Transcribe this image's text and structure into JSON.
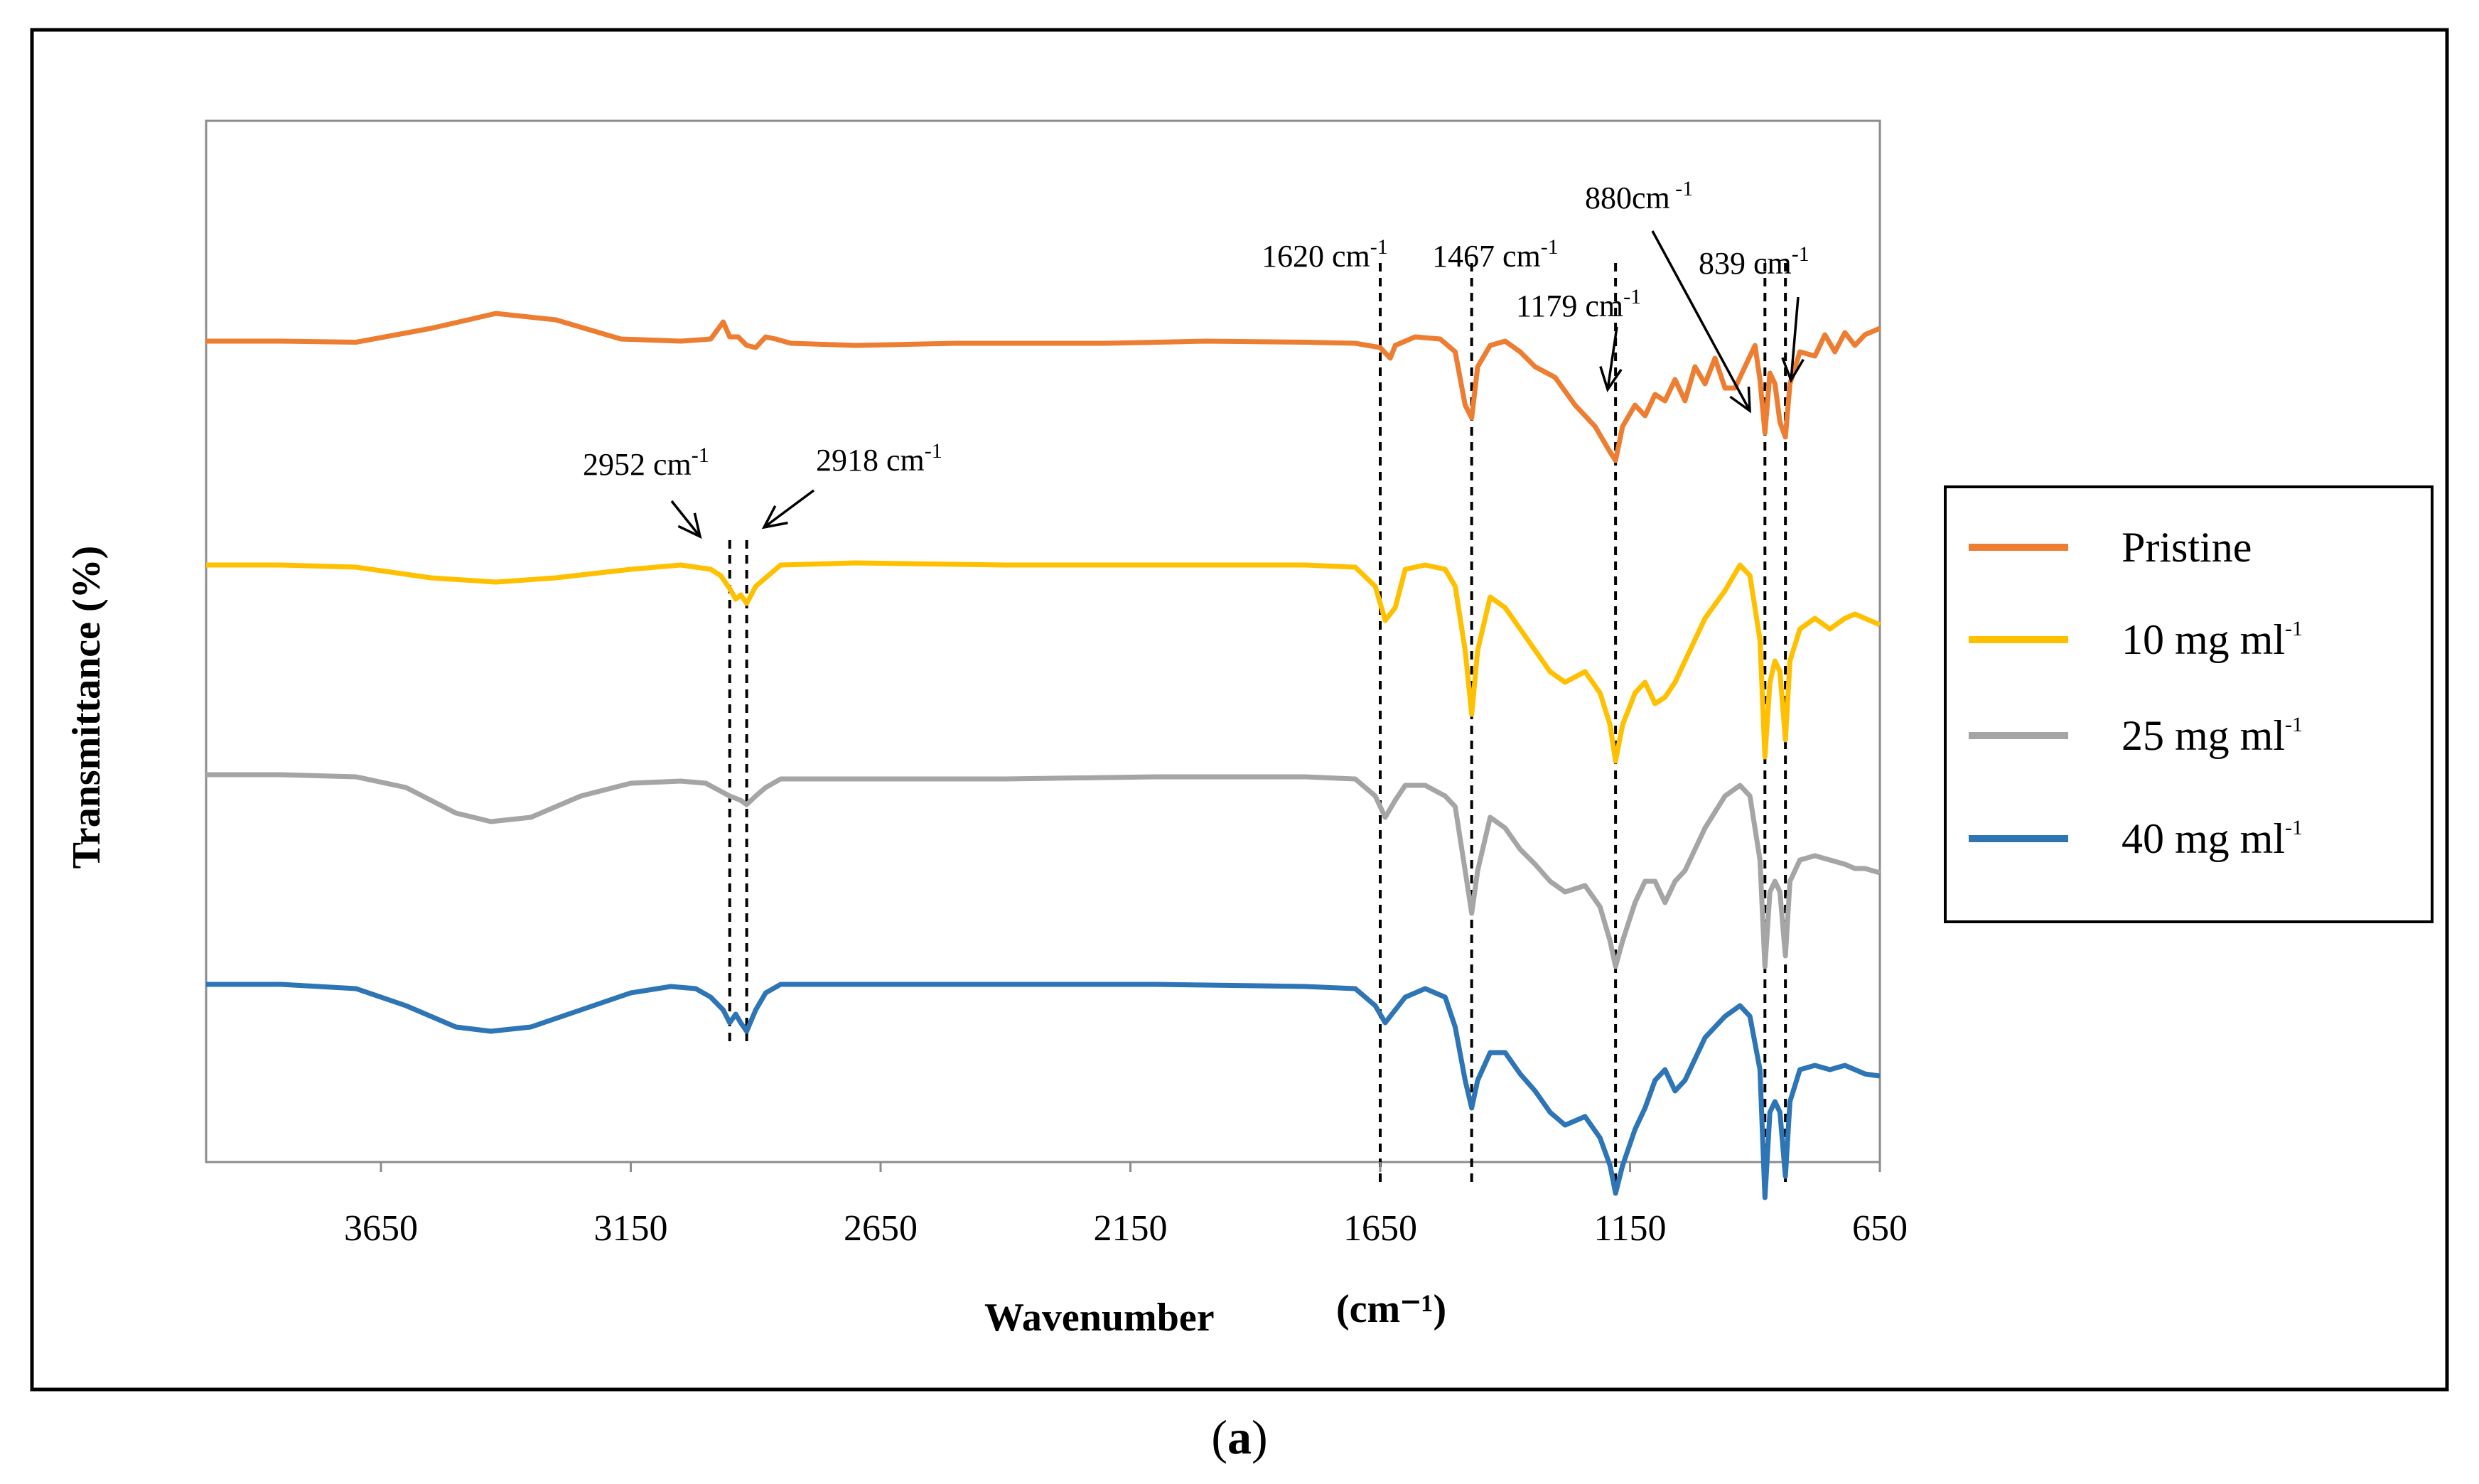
{
  "chart_data": {
    "type": "line",
    "title": "",
    "xlabel": "Wavenumber",
    "xlabel_unit": "(cm⁻¹)",
    "ylabel": "Transmittance (%)",
    "xlim": [
      4000,
      650
    ],
    "x_reversed": true,
    "x_ticks": [
      "3650",
      "3150",
      "2650",
      "2150",
      "1650",
      "1150",
      "650"
    ],
    "x_tick_values": [
      3650,
      3150,
      2650,
      2150,
      1650,
      1150,
      650
    ],
    "y_ticks": [],
    "grid": false,
    "legend_position": "right",
    "series": [
      {
        "name": "Pristine",
        "color": "#ED7D31",
        "baseline": 0.0,
        "points": [
          [
            4000,
            0
          ],
          [
            3850,
            0
          ],
          [
            3700,
            0.005
          ],
          [
            3550,
            -0.06
          ],
          [
            3420,
            -0.13
          ],
          [
            3300,
            -0.1
          ],
          [
            3170,
            -0.01
          ],
          [
            3050,
            0
          ],
          [
            2990,
            -0.01
          ],
          [
            2965,
            -0.09
          ],
          [
            2952,
            -0.02
          ],
          [
            2935,
            -0.02
          ],
          [
            2918,
            0.02
          ],
          [
            2900,
            0.03
          ],
          [
            2880,
            -0.02
          ],
          [
            2860,
            -0.01
          ],
          [
            2830,
            0.01
          ],
          [
            2700,
            0.02
          ],
          [
            2500,
            0.01
          ],
          [
            2200,
            0.01
          ],
          [
            2000,
            0
          ],
          [
            1800,
            0.005
          ],
          [
            1700,
            0.01
          ],
          [
            1650,
            0.03
          ],
          [
            1630,
            0.08
          ],
          [
            1620,
            0.02
          ],
          [
            1580,
            -0.02
          ],
          [
            1530,
            -0.01
          ],
          [
            1500,
            0.05
          ],
          [
            1480,
            0.3
          ],
          [
            1467,
            0.36
          ],
          [
            1455,
            0.12
          ],
          [
            1430,
            0.02
          ],
          [
            1400,
            0.0
          ],
          [
            1370,
            0.05
          ],
          [
            1340,
            0.12
          ],
          [
            1300,
            0.17
          ],
          [
            1260,
            0.3
          ],
          [
            1220,
            0.4
          ],
          [
            1190,
            0.52
          ],
          [
            1179,
            0.56
          ],
          [
            1165,
            0.4
          ],
          [
            1140,
            0.3
          ],
          [
            1120,
            0.35
          ],
          [
            1100,
            0.25
          ],
          [
            1080,
            0.28
          ],
          [
            1060,
            0.18
          ],
          [
            1040,
            0.28
          ],
          [
            1020,
            0.12
          ],
          [
            1000,
            0.2
          ],
          [
            980,
            0.08
          ],
          [
            960,
            0.22
          ],
          [
            940,
            0.22
          ],
          [
            920,
            0.12
          ],
          [
            900,
            0.02
          ],
          [
            890,
            0.18
          ],
          [
            880,
            0.43
          ],
          [
            870,
            0.15
          ],
          [
            860,
            0.2
          ],
          [
            850,
            0.38
          ],
          [
            839,
            0.45
          ],
          [
            830,
            0.2
          ],
          [
            810,
            0.05
          ],
          [
            780,
            0.07
          ],
          [
            760,
            -0.03
          ],
          [
            740,
            0.05
          ],
          [
            720,
            -0.04
          ],
          [
            700,
            0.02
          ],
          [
            680,
            -0.03
          ],
          [
            650,
            -0.06
          ]
        ]
      },
      {
        "name": "10 mg ml⁻¹",
        "color": "#FFC000",
        "baseline": 1.0,
        "points": [
          [
            4000,
            1
          ],
          [
            3850,
            1
          ],
          [
            3700,
            1.01
          ],
          [
            3550,
            1.06
          ],
          [
            3420,
            1.08
          ],
          [
            3300,
            1.06
          ],
          [
            3150,
            1.02
          ],
          [
            3050,
            1.0
          ],
          [
            2990,
            1.02
          ],
          [
            2970,
            1.05
          ],
          [
            2952,
            1.11
          ],
          [
            2940,
            1.16
          ],
          [
            2930,
            1.14
          ],
          [
            2918,
            1.18
          ],
          [
            2900,
            1.1
          ],
          [
            2880,
            1.06
          ],
          [
            2850,
            1.0
          ],
          [
            2700,
            0.99
          ],
          [
            2400,
            1.0
          ],
          [
            2100,
            1.0
          ],
          [
            1800,
            1.0
          ],
          [
            1700,
            1.01
          ],
          [
            1660,
            1.1
          ],
          [
            1640,
            1.26
          ],
          [
            1620,
            1.2
          ],
          [
            1600,
            1.02
          ],
          [
            1560,
            1.0
          ],
          [
            1520,
            1.02
          ],
          [
            1500,
            1.1
          ],
          [
            1480,
            1.4
          ],
          [
            1467,
            1.7
          ],
          [
            1455,
            1.4
          ],
          [
            1430,
            1.15
          ],
          [
            1400,
            1.2
          ],
          [
            1370,
            1.3
          ],
          [
            1340,
            1.4
          ],
          [
            1310,
            1.5
          ],
          [
            1280,
            1.55
          ],
          [
            1240,
            1.5
          ],
          [
            1210,
            1.6
          ],
          [
            1190,
            1.75
          ],
          [
            1179,
            1.92
          ],
          [
            1165,
            1.75
          ],
          [
            1140,
            1.6
          ],
          [
            1120,
            1.55
          ],
          [
            1100,
            1.65
          ],
          [
            1080,
            1.62
          ],
          [
            1060,
            1.55
          ],
          [
            1040,
            1.45
          ],
          [
            1000,
            1.25
          ],
          [
            960,
            1.12
          ],
          [
            930,
            1.0
          ],
          [
            910,
            1.05
          ],
          [
            890,
            1.35
          ],
          [
            880,
            1.9
          ],
          [
            870,
            1.55
          ],
          [
            860,
            1.45
          ],
          [
            850,
            1.5
          ],
          [
            839,
            1.82
          ],
          [
            830,
            1.45
          ],
          [
            810,
            1.3
          ],
          [
            780,
            1.25
          ],
          [
            750,
            1.3
          ],
          [
            720,
            1.25
          ],
          [
            700,
            1.23
          ],
          [
            680,
            1.25
          ],
          [
            650,
            1.28
          ]
        ]
      },
      {
        "name": "25 mg ml⁻¹",
        "color": "#A5A5A5",
        "baseline": 2.0,
        "points": [
          [
            4000,
            2
          ],
          [
            3850,
            2
          ],
          [
            3700,
            2.01
          ],
          [
            3600,
            2.06
          ],
          [
            3500,
            2.18
          ],
          [
            3430,
            2.22
          ],
          [
            3350,
            2.2
          ],
          [
            3250,
            2.1
          ],
          [
            3150,
            2.04
          ],
          [
            3050,
            2.03
          ],
          [
            3000,
            2.04
          ],
          [
            2952,
            2.1
          ],
          [
            2930,
            2.12
          ],
          [
            2918,
            2.14
          ],
          [
            2900,
            2.1
          ],
          [
            2880,
            2.06
          ],
          [
            2850,
            2.02
          ],
          [
            2700,
            2.02
          ],
          [
            2400,
            2.02
          ],
          [
            2100,
            2.01
          ],
          [
            1800,
            2.01
          ],
          [
            1700,
            2.02
          ],
          [
            1660,
            2.1
          ],
          [
            1640,
            2.2
          ],
          [
            1620,
            2.12
          ],
          [
            1600,
            2.05
          ],
          [
            1560,
            2.05
          ],
          [
            1520,
            2.1
          ],
          [
            1500,
            2.15
          ],
          [
            1480,
            2.45
          ],
          [
            1467,
            2.65
          ],
          [
            1455,
            2.45
          ],
          [
            1430,
            2.2
          ],
          [
            1400,
            2.25
          ],
          [
            1370,
            2.35
          ],
          [
            1340,
            2.42
          ],
          [
            1310,
            2.5
          ],
          [
            1280,
            2.55
          ],
          [
            1240,
            2.52
          ],
          [
            1210,
            2.62
          ],
          [
            1190,
            2.78
          ],
          [
            1179,
            2.9
          ],
          [
            1165,
            2.78
          ],
          [
            1140,
            2.6
          ],
          [
            1120,
            2.5
          ],
          [
            1100,
            2.5
          ],
          [
            1080,
            2.6
          ],
          [
            1060,
            2.5
          ],
          [
            1040,
            2.45
          ],
          [
            1000,
            2.25
          ],
          [
            960,
            2.1
          ],
          [
            930,
            2.05
          ],
          [
            910,
            2.1
          ],
          [
            890,
            2.4
          ],
          [
            880,
            2.9
          ],
          [
            870,
            2.55
          ],
          [
            860,
            2.5
          ],
          [
            850,
            2.55
          ],
          [
            839,
            2.85
          ],
          [
            830,
            2.5
          ],
          [
            810,
            2.4
          ],
          [
            780,
            2.38
          ],
          [
            750,
            2.4
          ],
          [
            720,
            2.42
          ],
          [
            700,
            2.44
          ],
          [
            680,
            2.44
          ],
          [
            650,
            2.46
          ]
        ]
      },
      {
        "name": "40 mg ml⁻¹",
        "color": "#2E75B6",
        "baseline": 3.0,
        "points": [
          [
            4000,
            3
          ],
          [
            3850,
            3.0
          ],
          [
            3700,
            3.02
          ],
          [
            3600,
            3.1
          ],
          [
            3500,
            3.2
          ],
          [
            3430,
            3.22
          ],
          [
            3350,
            3.2
          ],
          [
            3250,
            3.12
          ],
          [
            3150,
            3.04
          ],
          [
            3070,
            3.01
          ],
          [
            3020,
            3.02
          ],
          [
            2990,
            3.06
          ],
          [
            2965,
            3.12
          ],
          [
            2952,
            3.18
          ],
          [
            2940,
            3.14
          ],
          [
            2930,
            3.18
          ],
          [
            2918,
            3.22
          ],
          [
            2900,
            3.12
          ],
          [
            2880,
            3.04
          ],
          [
            2850,
            3.0
          ],
          [
            2700,
            3.0
          ],
          [
            2400,
            3.0
          ],
          [
            2100,
            3.0
          ],
          [
            1800,
            3.01
          ],
          [
            1700,
            3.02
          ],
          [
            1660,
            3.1
          ],
          [
            1640,
            3.18
          ],
          [
            1620,
            3.12
          ],
          [
            1600,
            3.06
          ],
          [
            1560,
            3.02
          ],
          [
            1520,
            3.06
          ],
          [
            1500,
            3.2
          ],
          [
            1480,
            3.45
          ],
          [
            1467,
            3.58
          ],
          [
            1455,
            3.45
          ],
          [
            1430,
            3.32
          ],
          [
            1400,
            3.32
          ],
          [
            1370,
            3.42
          ],
          [
            1340,
            3.5
          ],
          [
            1310,
            3.6
          ],
          [
            1280,
            3.66
          ],
          [
            1240,
            3.62
          ],
          [
            1210,
            3.72
          ],
          [
            1190,
            3.85
          ],
          [
            1179,
            3.98
          ],
          [
            1165,
            3.85
          ],
          [
            1140,
            3.68
          ],
          [
            1120,
            3.58
          ],
          [
            1100,
            3.45
          ],
          [
            1080,
            3.4
          ],
          [
            1060,
            3.5
          ],
          [
            1040,
            3.45
          ],
          [
            1000,
            3.25
          ],
          [
            960,
            3.15
          ],
          [
            930,
            3.1
          ],
          [
            910,
            3.15
          ],
          [
            890,
            3.4
          ],
          [
            880,
            4.0
          ],
          [
            870,
            3.6
          ],
          [
            860,
            3.55
          ],
          [
            850,
            3.6
          ],
          [
            839,
            3.9
          ],
          [
            830,
            3.55
          ],
          [
            810,
            3.4
          ],
          [
            780,
            3.38
          ],
          [
            750,
            3.4
          ],
          [
            720,
            3.38
          ],
          [
            700,
            3.4
          ],
          [
            680,
            3.42
          ],
          [
            650,
            3.43
          ]
        ]
      }
    ],
    "marker_lines": [
      {
        "wavenumber": 2952,
        "from_series": 1,
        "to_series": 3
      },
      {
        "wavenumber": 2918,
        "from_series": 1,
        "to_series": 3
      },
      {
        "wavenumber": 1650,
        "from_series": 0,
        "to_series": 3
      },
      {
        "wavenumber": 1467,
        "from_series": 0,
        "to_series": 3
      },
      {
        "wavenumber": 1179,
        "from_series": 0,
        "to_series": 3
      },
      {
        "wavenumber": 880,
        "from_series": 0,
        "to_series": 3
      },
      {
        "wavenumber": 839,
        "from_series": 0,
        "to_series": 3
      }
    ],
    "annotations": [
      {
        "label": "1620 cm",
        "sup": "-1",
        "wavenumber": 1620
      },
      {
        "label": "1467 cm",
        "sup": "-1",
        "wavenumber": 1467
      },
      {
        "label": "1179 cm",
        "sup": "-1",
        "wavenumber": 1179
      },
      {
        "label": "880cm",
        "sup": " -1",
        "wavenumber": 880
      },
      {
        "label": "839 cm",
        "sup": "-1",
        "wavenumber": 839
      },
      {
        "label": "2952 cm",
        "sup": "-1",
        "wavenumber": 2952
      },
      {
        "label": "2918 cm",
        "sup": "-1",
        "wavenumber": 2918
      }
    ]
  },
  "legend": {
    "items": [
      {
        "label": "Pristine",
        "sup": "",
        "color": "#ED7D31"
      },
      {
        "label": "10 mg ml",
        "sup": "-1",
        "color": "#FFC000"
      },
      {
        "label": "25 mg ml",
        "sup": "-1",
        "color": "#A5A5A5"
      },
      {
        "label": "40 mg ml",
        "sup": "-1",
        "color": "#2E75B6"
      }
    ]
  },
  "caption": {
    "open": "(",
    "letter": "a",
    "close": ")"
  }
}
